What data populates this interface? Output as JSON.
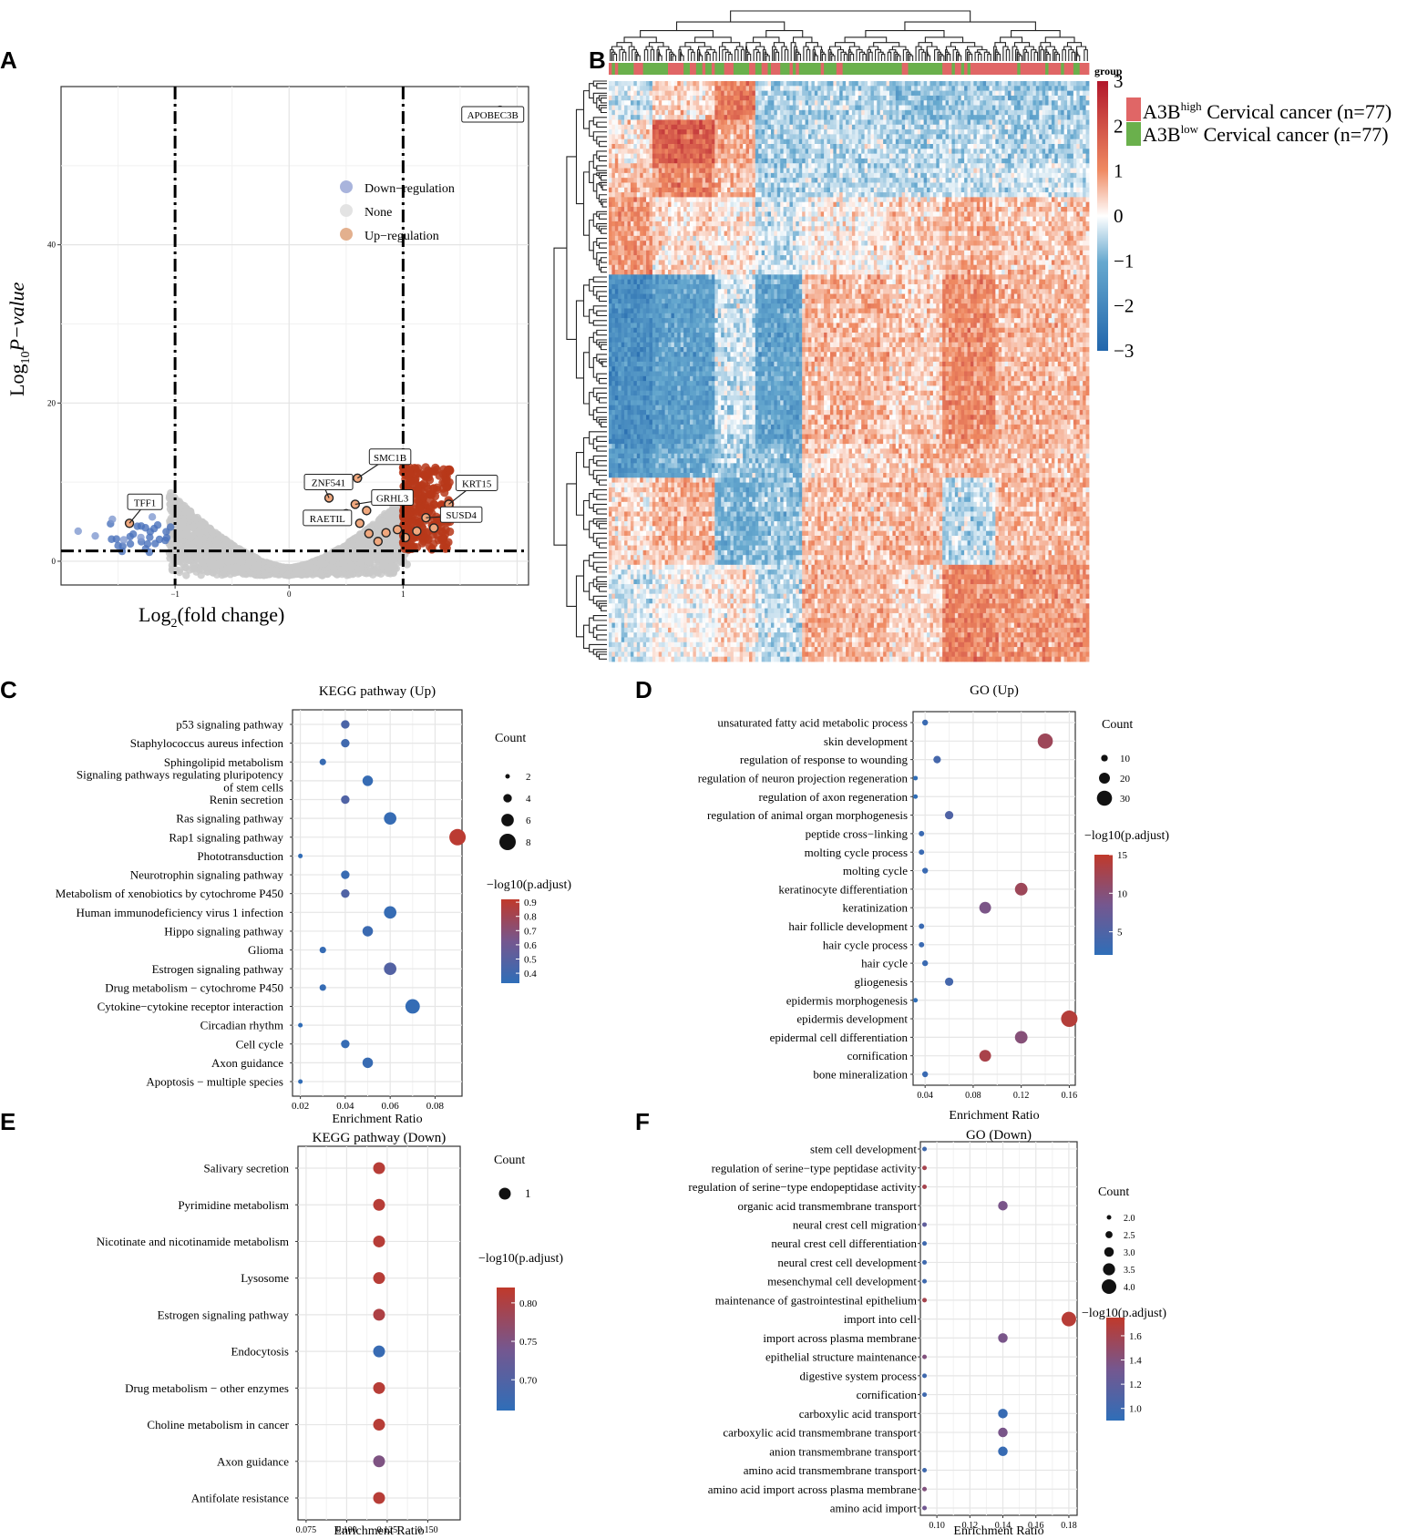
{
  "colors": {
    "up": "#b23a1e",
    "down": "#3d6bb3",
    "none": "#c8c8c8",
    "high": "#e06666",
    "low": "#6ab04c",
    "heatHigh": "#b2182b",
    "heatLow": "#2166ac"
  },
  "panel_labels": {
    "a": "A",
    "b": "B",
    "c": "C",
    "d": "D",
    "e": "E",
    "f": "F"
  },
  "chart_data": [
    {
      "id": "volcano",
      "type": "scatter",
      "xlabel": "Log",
      "xlabel_sub": "2",
      "xlabel_tail": "(fold change)",
      "ylabel": "Log",
      "ylabel_sub": "10",
      "ylabel_tail": "P−value",
      "xlim": [
        -2.0,
        2.1
      ],
      "ylim": [
        -3,
        60
      ],
      "xticks": [
        "−1",
        "0",
        "1"
      ],
      "xtick_values": [
        -1,
        0,
        1
      ],
      "yticks": [
        "0",
        "20",
        "40"
      ],
      "ytick_values": [
        0,
        20,
        40
      ],
      "thresholds": {
        "x": [
          -1,
          1
        ],
        "y": 1.3
      },
      "legend": [
        "Down−regulation",
        "None",
        "Up−regulation"
      ],
      "labeled_points": [
        {
          "label": "APOBEC3B",
          "x": 1.85,
          "y": 57
        },
        {
          "label": "SMC1B",
          "x": 0.6,
          "y": 10.5
        },
        {
          "label": "ZNF541",
          "x": 0.35,
          "y": 8
        },
        {
          "label": "GRHL3",
          "x": 0.58,
          "y": 7.2
        },
        {
          "label": "KRT15",
          "x": 1.4,
          "y": 7.2
        },
        {
          "label": "RAETIL",
          "x": 0.5,
          "y": 6
        },
        {
          "label": "SUSD4",
          "x": 1.2,
          "y": 5.5
        },
        {
          "label": "TFF1",
          "x": -1.4,
          "y": 4.8
        }
      ]
    },
    {
      "id": "heatmap",
      "type": "heatmap",
      "legend_title": "group",
      "scale_ticks": [
        "3",
        "2",
        "1",
        "0",
        "−1",
        "−2",
        "−3"
      ],
      "scale_values": [
        3,
        2,
        1,
        0,
        -1,
        -2,
        -3
      ],
      "groups": [
        {
          "label_main": "A3B",
          "label_sup": "high",
          "label_tail": " Cervical cancer (n=77)",
          "color": "#e06666"
        },
        {
          "label_main": "A3B",
          "label_sup": "low",
          "label_tail": " Cervical cancer (n=77)",
          "color": "#6ab04c"
        }
      ]
    },
    {
      "id": "kegg-up",
      "type": "scatter",
      "title": "KEGG pathway (Up)",
      "xlabel": "Enrichment Ratio",
      "xlim": [
        0.0165,
        0.092
      ],
      "xticks": [
        "0.02",
        "0.04",
        "0.06",
        "0.08"
      ],
      "xtick_values": [
        0.02,
        0.04,
        0.06,
        0.08
      ],
      "size_title": "Count",
      "size_legend": [
        "2",
        "4",
        "6",
        "8"
      ],
      "size_values": [
        2,
        4,
        6,
        8
      ],
      "color_title": "−log10(p.adjust)",
      "color_ticks": [
        "0.9",
        "0.8",
        "0.7",
        "0.6",
        "0.5",
        "0.4"
      ],
      "color_range": [
        0.33,
        0.92
      ],
      "terms": [
        "p53 signaling pathway",
        "Staphylococcus aureus infection",
        "Sphingolipid metabolism",
        "Signaling pathways regulating pluripotency of stem cells",
        "Renin secretion",
        "Ras signaling pathway",
        "Rap1 signaling pathway",
        "Phototransduction",
        "Neurotrophin signaling pathway",
        "Metabolism of xenobiotics by cytochrome P450",
        "Human immunodeficiency virus 1 infection",
        "Hippo signaling pathway",
        "Glioma",
        "Estrogen signaling pathway",
        "Drug metabolism − cytochrome P450",
        "Cytokine−cytokine receptor interaction",
        "Circadian rhythm",
        "Cell cycle",
        "Axon guidance",
        "Apoptosis − multiple species"
      ],
      "labels": [
        [
          "p53 signaling pathway"
        ],
        [
          "Staphylococcus aureus infection"
        ],
        [
          "Sphingolipid metabolism"
        ],
        [
          "Signaling pathways regulating pluripotency",
          "of stem cells"
        ],
        [
          "Renin secretion"
        ],
        [
          "Ras signaling pathway"
        ],
        [
          "Rap1 signaling pathway"
        ],
        [
          "Phototransduction"
        ],
        [
          "Neurotrophin signaling pathway"
        ],
        [
          "Metabolism of xenobiotics by cytochrome P450"
        ],
        [
          "Human immunodeficiency virus 1 infection"
        ],
        [
          "Hippo signaling pathway"
        ],
        [
          "Glioma"
        ],
        [
          "Estrogen signaling pathway"
        ],
        [
          "Drug metabolism − cytochrome P450"
        ],
        [
          "Cytokine−cytokine receptor interaction"
        ],
        [
          "Circadian rhythm"
        ],
        [
          "Cell cycle"
        ],
        [
          "Axon guidance"
        ],
        [
          "Apoptosis − multiple species"
        ]
      ],
      "x": [
        0.04,
        0.04,
        0.03,
        0.05,
        0.04,
        0.06,
        0.09,
        0.02,
        0.04,
        0.04,
        0.06,
        0.05,
        0.03,
        0.06,
        0.03,
        0.07,
        0.02,
        0.04,
        0.05,
        0.02
      ],
      "count": [
        4,
        4,
        3,
        5,
        4,
        6,
        8,
        2,
        4,
        4,
        6,
        5,
        3,
        6,
        3,
        7,
        2,
        4,
        5,
        2
      ],
      "padj": [
        0.45,
        0.4,
        0.37,
        0.36,
        0.47,
        0.36,
        0.9,
        0.34,
        0.37,
        0.47,
        0.36,
        0.38,
        0.36,
        0.48,
        0.36,
        0.35,
        0.34,
        0.36,
        0.37,
        0.34
      ]
    },
    {
      "id": "go-up",
      "type": "scatter",
      "title": "GO (Up)",
      "xlabel": "Enrichment Ratio",
      "xlim": [
        0.03,
        0.165
      ],
      "xticks": [
        "0.04",
        "0.08",
        "0.12",
        "0.16"
      ],
      "xtick_values": [
        0.04,
        0.08,
        0.12,
        0.16
      ],
      "size_title": "Count",
      "size_legend": [
        "10",
        "20",
        "30"
      ],
      "size_values": [
        10,
        20,
        30
      ],
      "color_title": "−log10(p.adjust)",
      "color_ticks": [
        "15",
        "10",
        "5"
      ],
      "color_range": [
        2,
        15
      ],
      "terms": [
        "unsaturated fatty acid metabolic process",
        "skin development",
        "regulation of response to wounding",
        "regulation of neuron projection regeneration",
        "regulation of axon regeneration",
        "regulation of animal organ morphogenesis",
        "peptide cross−linking",
        "molting cycle process",
        "molting cycle",
        "keratinocyte differentiation",
        "keratinization",
        "hair follicle development",
        "hair cycle process",
        "hair cycle",
        "gliogenesis",
        "epidermis morphogenesis",
        "epidermis development",
        "epidermal cell differentiation",
        "cornification",
        "bone mineralization"
      ],
      "x": [
        0.04,
        0.14,
        0.05,
        0.032,
        0.032,
        0.06,
        0.037,
        0.037,
        0.04,
        0.12,
        0.09,
        0.037,
        0.037,
        0.04,
        0.06,
        0.032,
        0.16,
        0.12,
        0.09,
        0.04
      ],
      "count": [
        8,
        30,
        12,
        5,
        5,
        14,
        7,
        7,
        8,
        24,
        22,
        7,
        7,
        8,
        14,
        5,
        33,
        24,
        22,
        8
      ],
      "padj": [
        3,
        12,
        4,
        2,
        2,
        5,
        3,
        3,
        3,
        12,
        9,
        3,
        3,
        3,
        4,
        2,
        14,
        10,
        13,
        3
      ]
    },
    {
      "id": "kegg-down",
      "type": "scatter",
      "title": "KEGG pathway (Down)",
      "xlabel": "Enrichment Ratio",
      "xlim": [
        0.07,
        0.17
      ],
      "xticks": [
        "0.075",
        "0.100",
        "0.125",
        "0.150"
      ],
      "xtick_values": [
        0.075,
        0.1,
        0.125,
        0.15
      ],
      "size_title": "Count",
      "size_legend": [
        "1"
      ],
      "size_values": [
        1
      ],
      "color_title": "−log10(p.adjust)",
      "color_ticks": [
        "0.80",
        "0.75",
        "0.70"
      ],
      "color_range": [
        0.66,
        0.82
      ],
      "terms": [
        "Salivary secretion",
        "Pyrimidine metabolism",
        "Nicotinate and nicotinamide metabolism",
        "Lysosome",
        "Estrogen signaling pathway",
        "Endocytosis",
        "Drug metabolism − other enzymes",
        "Choline metabolism in cancer",
        "Axon guidance",
        "Antifolate resistance"
      ],
      "x": [
        0.12,
        0.12,
        0.12,
        0.12,
        0.12,
        0.12,
        0.12,
        0.12,
        0.12,
        0.12
      ],
      "count": [
        1,
        1,
        1,
        1,
        1,
        1,
        1,
        1,
        1,
        1
      ],
      "padj": [
        0.81,
        0.81,
        0.81,
        0.81,
        0.8,
        0.67,
        0.81,
        0.81,
        0.75,
        0.81
      ]
    },
    {
      "id": "go-down",
      "type": "scatter",
      "title": "GO (Down)",
      "xlabel": "Enrichment Ratio",
      "xlim": [
        0.09,
        0.185
      ],
      "xticks": [
        "0.10",
        "0.12",
        "0.14",
        "0.16",
        "0.18"
      ],
      "xtick_values": [
        0.1,
        0.12,
        0.14,
        0.16,
        0.18
      ],
      "size_title": "Count",
      "size_legend": [
        "2.0",
        "2.5",
        "3.0",
        "3.5",
        "4.0"
      ],
      "size_values": [
        2,
        2.5,
        3,
        3.5,
        4
      ],
      "color_title": "−log10(p.adjust)",
      "color_ticks": [
        "1.6",
        "1.4",
        "1.2",
        "1.0"
      ],
      "color_range": [
        0.9,
        1.75
      ],
      "terms": [
        "stem cell development",
        "regulation of serine−type peptidase activity",
        "regulation of serine−type endopeptidase activity",
        "organic acid transmembrane transport",
        "neural crest cell migration",
        "neural crest cell differentiation",
        "neural crest cell development",
        "mesenchymal cell development",
        "maintenance of gastrointestinal epithelium",
        "import into cell",
        "import across plasma membrane",
        "epithelial structure maintenance",
        "digestive system process",
        "cornification",
        "carboxylic acid transport",
        "carboxylic acid transmembrane transport",
        "anion transmembrane transport",
        "amino acid transmembrane transport",
        "amino acid import across plasma membrane",
        "amino acid import"
      ],
      "x": [
        0.0925,
        0.0925,
        0.0925,
        0.14,
        0.0925,
        0.0925,
        0.0925,
        0.0925,
        0.0925,
        0.18,
        0.14,
        0.0925,
        0.0925,
        0.0925,
        0.14,
        0.14,
        0.14,
        0.0925,
        0.0925,
        0.0925
      ],
      "count": [
        2,
        2,
        2,
        3,
        2,
        2,
        2,
        2,
        2,
        4,
        3,
        2,
        2,
        2,
        3,
        3,
        3,
        2,
        2,
        2
      ],
      "padj": [
        1.0,
        1.6,
        1.6,
        1.35,
        1.2,
        1.0,
        1.0,
        1.0,
        1.6,
        1.7,
        1.35,
        1.4,
        1.0,
        1.0,
        0.95,
        1.35,
        0.95,
        1.0,
        1.4,
        1.3
      ]
    }
  ]
}
